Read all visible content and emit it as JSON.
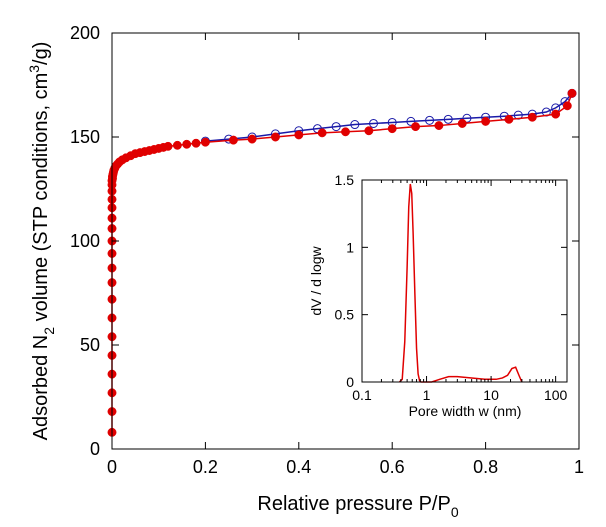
{
  "chart_data": [
    {
      "type": "scatter",
      "xlabel_main": "Relative pressure P/P",
      "xlabel_sub": "0",
      "ylabel_pre": "Adsorbed N",
      "ylabel_sub": "2",
      "ylabel_mid": " volume (STP conditions, cm",
      "ylabel_sup": "3",
      "ylabel_post": "/g)",
      "xlim": [
        0,
        1
      ],
      "ylim": [
        0,
        200
      ],
      "x_ticks": [
        0,
        0.2,
        0.4,
        0.6,
        0.8,
        1
      ],
      "x_tick_labels": [
        "0",
        "0.2",
        "0.4",
        "0.6",
        "0.8",
        "1"
      ],
      "y_ticks": [
        0,
        50,
        100,
        150,
        200
      ],
      "y_tick_labels": [
        "0",
        "50",
        "100",
        "150",
        "200"
      ],
      "grid": false,
      "colors": {
        "adsorption": "#e00000",
        "desorption": "#1a1aa8"
      },
      "series": [
        {
          "x": [
            0,
            0,
            0,
            0,
            0,
            0,
            0,
            0,
            0,
            0,
            0,
            0,
            0,
            0,
            0,
            0,
            0,
            0,
            0,
            0.001,
            0.001,
            0.002,
            0.003,
            0.004,
            0.006,
            0.008,
            0.012,
            0.016,
            0.022,
            0.03,
            0.04,
            0.05,
            0.06,
            0.07,
            0.08,
            0.09,
            0.1,
            0.11,
            0.12,
            0.14,
            0.16,
            0.18,
            0.2,
            0.26,
            0.3,
            0.35,
            0.4,
            0.45,
            0.5,
            0.55,
            0.6,
            0.65,
            0.7,
            0.75,
            0.8,
            0.85,
            0.9,
            0.95,
            0.975,
            0.985
          ],
          "y": [
            8,
            18,
            27,
            36,
            45,
            54,
            63,
            72,
            80,
            87,
            94,
            100,
            106,
            111,
            116,
            120,
            124,
            127,
            129,
            130,
            131,
            132,
            133,
            134,
            135,
            136,
            137,
            138,
            139,
            140,
            141,
            142,
            142.5,
            143,
            143.5,
            144,
            144.5,
            145,
            145.5,
            146,
            146.5,
            147,
            147.5,
            148.5,
            149,
            150,
            151,
            152,
            152.5,
            153,
            154,
            155,
            155.5,
            156.5,
            157.5,
            158.5,
            159.5,
            161,
            165,
            171
          ]
        },
        {
          "x": [
            0.985,
            0.97,
            0.95,
            0.93,
            0.9,
            0.87,
            0.84,
            0.8,
            0.76,
            0.72,
            0.68,
            0.64,
            0.6,
            0.56,
            0.52,
            0.48,
            0.44,
            0.4,
            0.35,
            0.3,
            0.25,
            0.2
          ],
          "y": [
            171,
            167,
            164,
            162,
            161,
            160.5,
            160,
            159.5,
            159,
            158.5,
            158,
            157.5,
            157,
            156.5,
            156,
            155,
            154,
            153,
            151.5,
            150,
            149,
            148
          ]
        }
      ]
    },
    {
      "type": "line",
      "xlabel": "Pore width w (nm)",
      "ylabel": "dV / d logw",
      "x_scale": "log",
      "xlim": [
        0.1,
        150
      ],
      "ylim": [
        0,
        1.5
      ],
      "x_ticks": [
        0.1,
        1,
        10,
        100
      ],
      "x_tick_labels": [
        "0.1",
        "1",
        "10",
        "100"
      ],
      "y_ticks": [
        0,
        0.5,
        1,
        1.5
      ],
      "y_tick_labels": [
        "0",
        "0.5",
        "1",
        "1.5"
      ],
      "color": "#e00000",
      "series": [
        {
          "x": [
            0.38,
            0.42,
            0.46,
            0.5,
            0.53,
            0.56,
            0.59,
            0.62,
            0.66,
            0.7,
            0.74,
            0.78,
            0.82,
            0.9,
            1.2,
            1.6,
            2.2,
            3,
            5,
            8,
            12,
            15,
            18,
            21,
            24,
            27,
            30
          ],
          "y": [
            0,
            0.02,
            0.3,
            0.85,
            1.3,
            1.47,
            1.4,
            1.1,
            0.65,
            0.25,
            0.06,
            0.01,
            0,
            0,
            0,
            0.02,
            0.04,
            0.04,
            0.03,
            0.02,
            0.02,
            0.03,
            0.05,
            0.1,
            0.11,
            0.05,
            0
          ]
        }
      ]
    }
  ]
}
